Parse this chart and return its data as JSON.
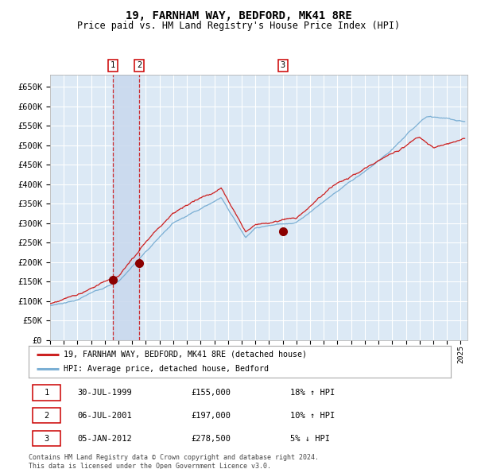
{
  "title": "19, FARNHAM WAY, BEDFORD, MK41 8RE",
  "subtitle": "Price paid vs. HM Land Registry's House Price Index (HPI)",
  "title_fontsize": 10,
  "subtitle_fontsize": 8.5,
  "background_color": "#ffffff",
  "plot_bg_color": "#dce9f5",
  "grid_color": "#ffffff",
  "ylim": [
    0,
    680000
  ],
  "yticks": [
    0,
    50000,
    100000,
    150000,
    200000,
    250000,
    300000,
    350000,
    400000,
    450000,
    500000,
    550000,
    600000,
    650000
  ],
  "ytick_labels": [
    "£0",
    "£50K",
    "£100K",
    "£150K",
    "£200K",
    "£250K",
    "£300K",
    "£350K",
    "£400K",
    "£450K",
    "£500K",
    "£550K",
    "£600K",
    "£650K"
  ],
  "sale_dates_num": [
    1999.58,
    2001.51,
    2012.01
  ],
  "sale_prices": [
    155000,
    197000,
    278500
  ],
  "sale_labels": [
    "1",
    "2",
    "3"
  ],
  "vline_color": "#cc0000",
  "sale_dot_color": "#8b0000",
  "highlight_bg": "#c8d8ed",
  "legend_entries": [
    "19, FARNHAM WAY, BEDFORD, MK41 8RE (detached house)",
    "HPI: Average price, detached house, Bedford"
  ],
  "legend_colors": [
    "#cc2222",
    "#7bafd4"
  ],
  "table_rows": [
    [
      "1",
      "30-JUL-1999",
      "£155,000",
      "18% ↑ HPI"
    ],
    [
      "2",
      "06-JUL-2001",
      "£197,000",
      "10% ↑ HPI"
    ],
    [
      "3",
      "05-JAN-2012",
      "£278,500",
      "5% ↓ HPI"
    ]
  ],
  "footer": "Contains HM Land Registry data © Crown copyright and database right 2024.\nThis data is licensed under the Open Government Licence v3.0.",
  "hpi_line_color": "#7bafd4",
  "price_line_color": "#cc2222",
  "xlim_start": 1995.0,
  "xlim_end": 2025.5
}
